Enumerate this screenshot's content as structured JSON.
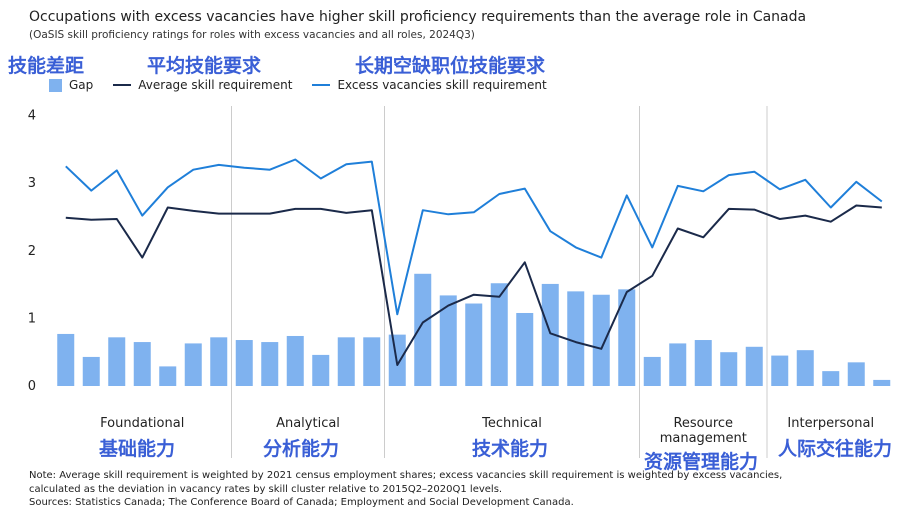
{
  "header": {
    "title": "Occupations with excess vacancies have higher skill proficiency requirements than the average role in Canada",
    "subtitle": "(OaSIS skill proficiency ratings for roles with excess vacancies and all roles, 2024Q3)"
  },
  "annotations": {
    "gap": "技能差距",
    "avg": "平均技能要求",
    "excess": "长期空缺职位技能要求",
    "foundational": "基础能力",
    "analytical": "分析能力",
    "technical": "技术能力",
    "resource": "资源管理能力",
    "interpersonal": "人际交往能力"
  },
  "legend": {
    "gap": "Gap",
    "avg": "Average skill requirement",
    "excess": "Excess vacancies skill requirement"
  },
  "colors": {
    "gap": "#7fb2ef",
    "avg": "#1b2a4a",
    "excess": "#1f7fd9",
    "annotation": "#3a5fd6",
    "grid": "#cccccc"
  },
  "chart_data": {
    "type": "bar",
    "ylim": [
      0,
      4
    ],
    "yticks": [
      "0",
      "1",
      "2",
      "3",
      "4"
    ],
    "groups": [
      {
        "label": "Foundational",
        "label2": "",
        "count": 7
      },
      {
        "label": "Analytical",
        "label2": "",
        "count": 6
      },
      {
        "label": "Technical",
        "label2": "",
        "count": 10
      },
      {
        "label": "Resource",
        "label2": "management",
        "count": 5
      },
      {
        "label": "Interpersonal",
        "label2": "",
        "count": 5
      }
    ],
    "series": [
      {
        "name": "Gap",
        "kind": "bar",
        "values": [
          0.77,
          0.43,
          0.72,
          0.65,
          0.29,
          0.63,
          0.72,
          0.68,
          0.65,
          0.74,
          0.46,
          0.72,
          0.72,
          0.76,
          1.66,
          1.34,
          1.22,
          1.52,
          1.08,
          1.51,
          1.4,
          1.35,
          1.43,
          0.43,
          0.63,
          0.68,
          0.5,
          0.58,
          0.45,
          0.53,
          0.22,
          0.35,
          0.09
        ]
      },
      {
        "name": "Average skill requirement",
        "kind": "line",
        "values": [
          2.49,
          2.46,
          2.47,
          1.9,
          2.64,
          2.59,
          2.55,
          2.55,
          2.55,
          2.62,
          2.62,
          2.56,
          2.6,
          0.31,
          0.94,
          1.19,
          1.35,
          1.32,
          1.83,
          0.78,
          0.65,
          0.55,
          1.39,
          1.63,
          2.33,
          2.2,
          2.62,
          2.61,
          2.47,
          2.52,
          2.43,
          2.67,
          2.64
        ]
      },
      {
        "name": "Excess vacancies skill requirement",
        "kind": "line",
        "values": [
          3.25,
          2.89,
          3.19,
          2.52,
          2.94,
          3.2,
          3.27,
          3.23,
          3.2,
          3.35,
          3.07,
          3.28,
          3.32,
          1.06,
          2.6,
          2.54,
          2.57,
          2.84,
          2.92,
          2.29,
          2.05,
          1.9,
          2.82,
          2.05,
          2.96,
          2.88,
          3.12,
          3.17,
          2.91,
          3.05,
          2.64,
          3.02,
          2.73
        ]
      }
    ]
  },
  "footer": {
    "note1": "Note: Average skill requirement is weighted by 2021 census employment shares; excess vacancies skill requirement is weighted by excess vacancies,",
    "note2": "calculated as the deviation in vacancy rates by skill cluster relative to 2015Q2–2020Q1 levels.",
    "sources": "Sources: Statistics Canada; The Conference Board of Canada; Employment and Social Development Canada."
  }
}
